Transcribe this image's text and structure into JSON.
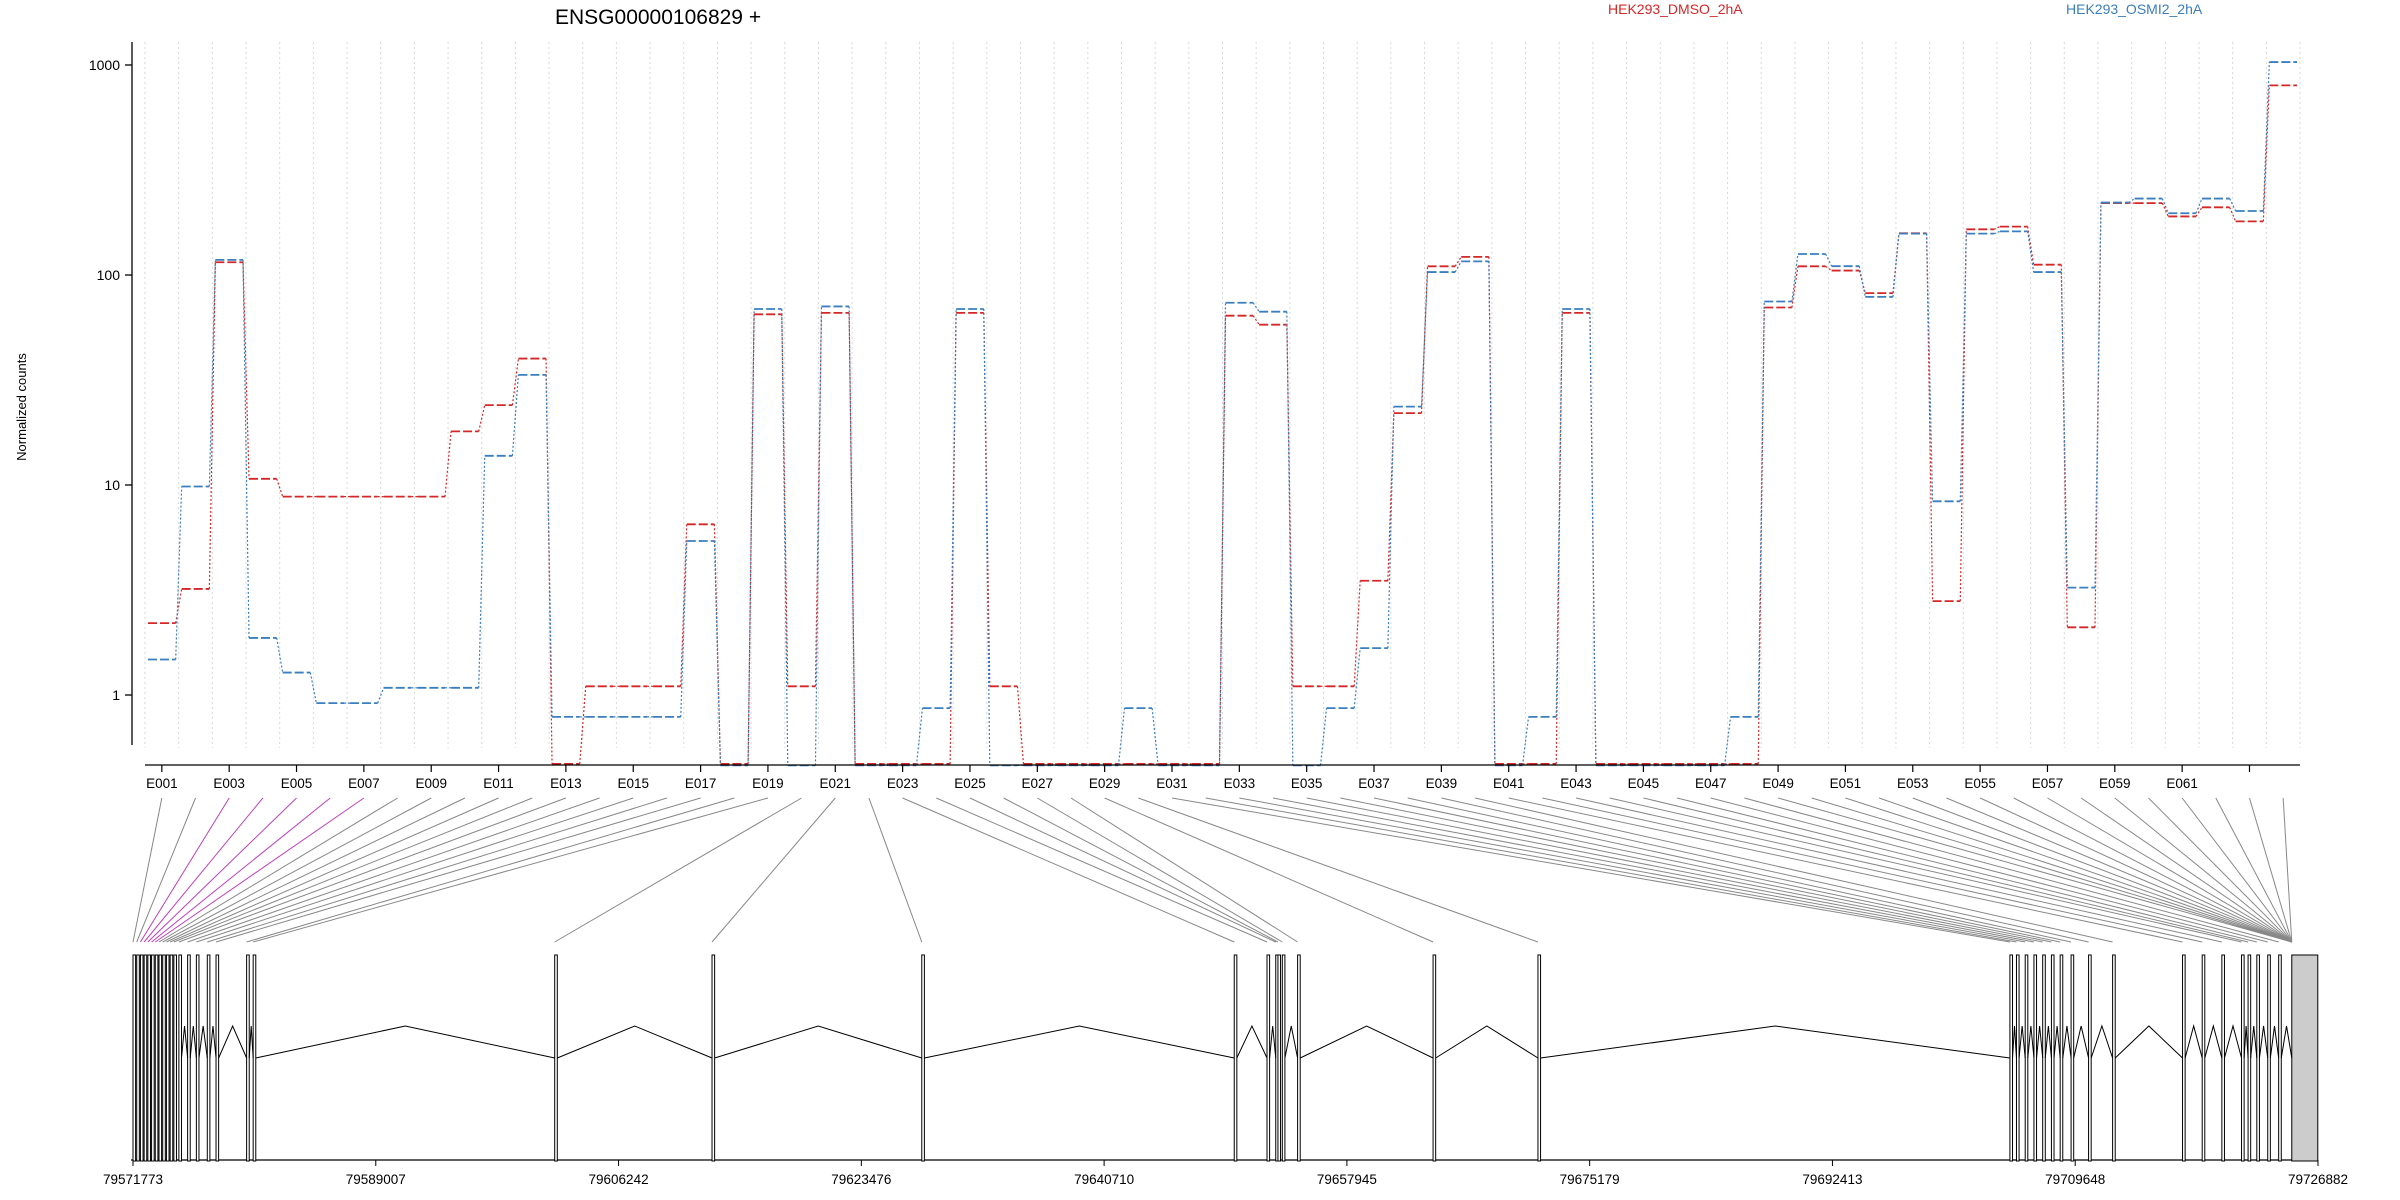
{
  "chart_data": {
    "type": "line",
    "title": "ENSG00000106829 +",
    "ylabel": "Normalized counts",
    "xlabel": "",
    "y_scale": "log",
    "y_ticks": [
      1,
      10,
      100,
      1000
    ],
    "y_tick_labels": [
      "1",
      "10",
      "100",
      "1000"
    ],
    "exon_labels_shown": [
      "E001",
      "E003",
      "E005",
      "E007",
      "E009",
      "E011",
      "E013",
      "E015",
      "E017",
      "E019",
      "E021",
      "E023",
      "E025",
      "E027",
      "E029",
      "E031",
      "E033",
      "E035",
      "E037",
      "E039",
      "E041",
      "E043",
      "E045",
      "E047",
      "E049",
      "E051",
      "E053",
      "E055",
      "E057",
      "E059",
      "E061"
    ],
    "legend": [
      {
        "name": "HEK293_DMSO_2hA",
        "color": "#d62728"
      },
      {
        "name": "HEK293_OSMI2_2hA",
        "color": "#3a7fc0"
      }
    ],
    "legend_placement": "top",
    "grid": "vertical dotted",
    "series": [
      {
        "name": "HEK293_DMSO_2hA",
        "color": "#d62728",
        "values": [
          2.2,
          3.2,
          115,
          10.7,
          8.8,
          8.8,
          8.8,
          8.8,
          8.8,
          18,
          24,
          40,
          0.47,
          1.1,
          1.1,
          1.1,
          6.5,
          0.47,
          65,
          1.1,
          66,
          0.47,
          0.47,
          0.47,
          66,
          1.1,
          0.47,
          0.47,
          0.47,
          0.47,
          0.47,
          0.47,
          64,
          58,
          1.1,
          1.1,
          3.5,
          22,
          110,
          122,
          0.47,
          0.47,
          66,
          0.47,
          0.47,
          0.47,
          0.47,
          0.47,
          70,
          110,
          105,
          82,
          158,
          2.8,
          165,
          170,
          112,
          2.1,
          220,
          220,
          190,
          210,
          180,
          800
        ]
      },
      {
        "name": "HEK293_OSMI2_2hA",
        "color": "#3a7fc0",
        "values": [
          1.5,
          10,
          120,
          1.9,
          1.3,
          0.93,
          0.93,
          1.1,
          1.1,
          1.1,
          14,
          34,
          0.8,
          0.8,
          0.8,
          0.8,
          5.5,
          0.47,
          70,
          0.47,
          72,
          0.47,
          0.47,
          0.88,
          70,
          0.47,
          0.47,
          0.47,
          0.47,
          0.88,
          0.47,
          0.47,
          75,
          68,
          0.47,
          0.88,
          1.7,
          24,
          105,
          118,
          0.47,
          0.8,
          70,
          0.47,
          0.47,
          0.47,
          0.47,
          0.8,
          76,
          128,
          112,
          80,
          160,
          8.5,
          160,
          164,
          105,
          3.3,
          225,
          235,
          200,
          235,
          205,
          1050
        ]
      }
    ],
    "genomic_ticks": [
      "79571773",
      "79589007",
      "79606242",
      "79623476",
      "79640710",
      "79657945",
      "79675179",
      "79692413",
      "79709648",
      "79726882"
    ]
  }
}
